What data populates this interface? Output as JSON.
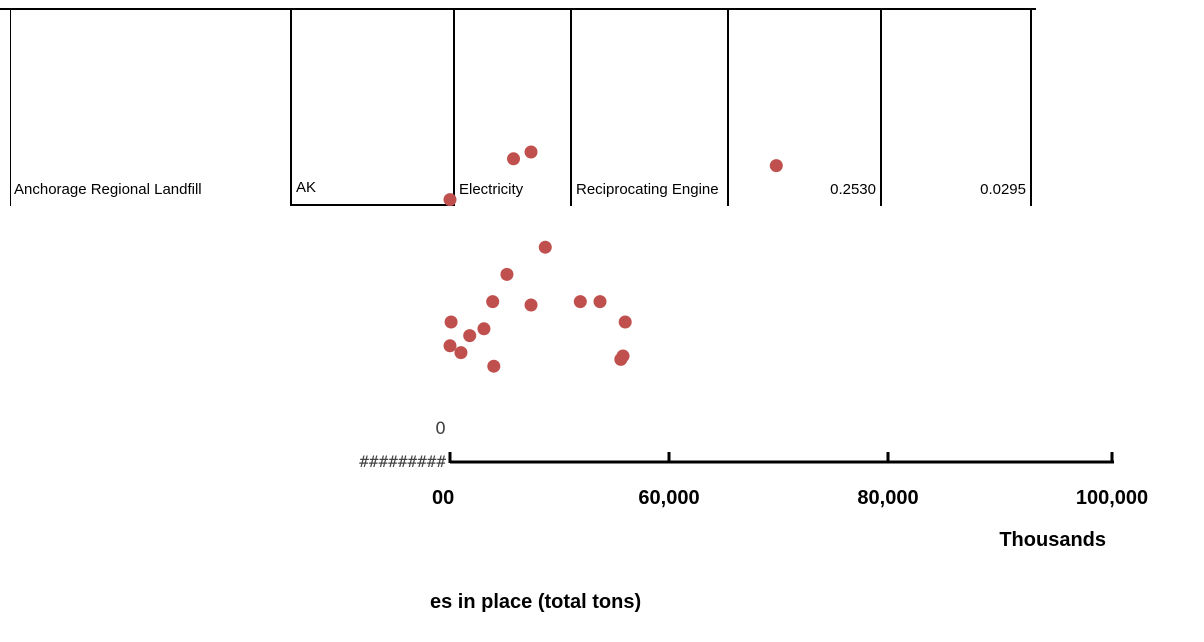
{
  "sheet_row": {
    "cells": [
      {
        "value": "Anchorage Regional Landfill",
        "align": "left"
      },
      {
        "value": "AK",
        "align": "left"
      },
      {
        "value": "Electricity",
        "align": "left"
      },
      {
        "value": "Reciprocating Engine",
        "align": "left"
      },
      {
        "value": "0.2530",
        "align": "right"
      },
      {
        "value": "0.0295",
        "align": "right"
      }
    ]
  },
  "chart_data": {
    "type": "scatter",
    "series": [
      {
        "color": "#c0504d",
        "points": [
          [
            40000,
            7.6
          ],
          [
            40100,
            4.0
          ],
          [
            40000,
            3.3
          ],
          [
            41000,
            3.1
          ],
          [
            41800,
            3.6
          ],
          [
            43100,
            3.8
          ],
          [
            43900,
            4.6
          ],
          [
            44000,
            2.7
          ],
          [
            45200,
            5.4
          ],
          [
            45800,
            8.8
          ],
          [
            47400,
            9.0
          ],
          [
            47400,
            4.5
          ],
          [
            48700,
            6.2
          ],
          [
            51900,
            4.6
          ],
          [
            53700,
            4.6
          ],
          [
            55600,
            2.9
          ],
          [
            55800,
            3.0
          ],
          [
            56000,
            4.0
          ],
          [
            69800,
            8.6
          ]
        ]
      }
    ],
    "x_ticks": [
      "00",
      "60,000",
      "80,000",
      "100,000"
    ],
    "x_unit_label": "Thousands",
    "xlabel": "es in place (total tons)",
    "y_tick_labels": [
      "0",
      "#########"
    ]
  }
}
